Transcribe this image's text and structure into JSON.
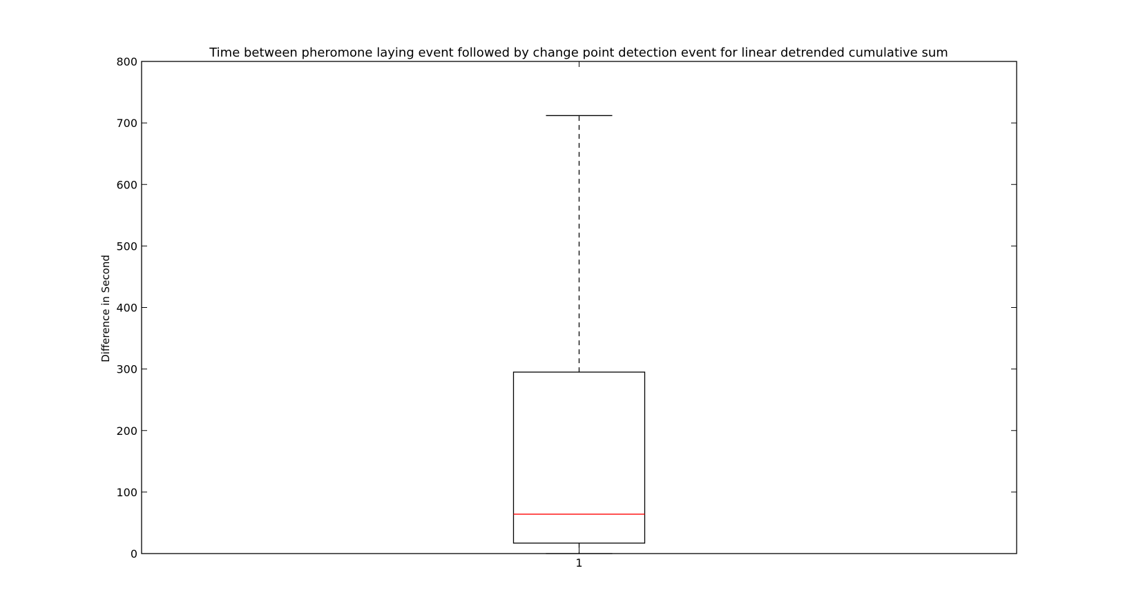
{
  "chart_data": {
    "type": "box",
    "title": "Time between pheromone laying event followed by change point detection event for linear detrended cumulative sum",
    "xlabel": "",
    "ylabel": "Difference in Second",
    "ylim": [
      0,
      800
    ],
    "yticks": [
      0,
      100,
      200,
      300,
      400,
      500,
      600,
      700,
      800
    ],
    "categories": [
      "1"
    ],
    "boxes": [
      {
        "label": "1",
        "whisker_low": 0,
        "q1": 17,
        "median": 64,
        "q3": 295,
        "whisker_high": 712
      }
    ],
    "grid": false,
    "legend": "none",
    "colors": {
      "box": "#000000",
      "median": "#ff0000",
      "whisker": "#000000"
    }
  }
}
